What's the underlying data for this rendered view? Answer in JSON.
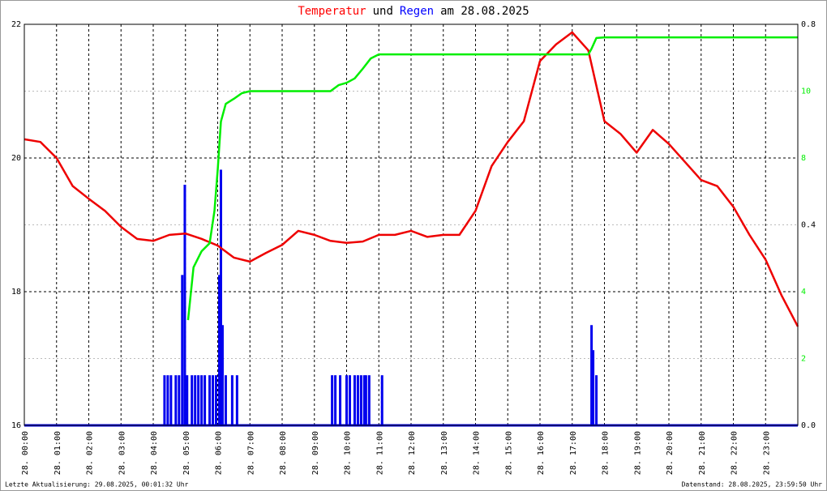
{
  "chart_data": {
    "type": "line",
    "title_parts": [
      {
        "text": "Temperatur",
        "color": "#ff0000"
      },
      {
        "text": "und",
        "color": "#000000"
      },
      {
        "text": "Regen",
        "color": "#0000ff"
      },
      {
        "text": "am 28.08.2025",
        "color": "#000000"
      }
    ],
    "xlim": [
      0,
      24
    ],
    "xticks": [
      {
        "value": 0,
        "label": "28. 00:00"
      },
      {
        "value": 1,
        "label": "28. 01:00"
      },
      {
        "value": 2,
        "label": "28. 02:00"
      },
      {
        "value": 3,
        "label": "28. 03:00"
      },
      {
        "value": 4,
        "label": "28. 04:00"
      },
      {
        "value": 5,
        "label": "28. 05:00"
      },
      {
        "value": 6,
        "label": "28. 06:00"
      },
      {
        "value": 7,
        "label": "28. 07:00"
      },
      {
        "value": 8,
        "label": "28. 08:00"
      },
      {
        "value": 9,
        "label": "28. 09:00"
      },
      {
        "value": 10,
        "label": "28. 10:00"
      },
      {
        "value": 11,
        "label": "28. 11:00"
      },
      {
        "value": 12,
        "label": "28. 12:00"
      },
      {
        "value": 13,
        "label": "28. 13:00"
      },
      {
        "value": 14,
        "label": "28. 14:00"
      },
      {
        "value": 15,
        "label": "28. 15:00"
      },
      {
        "value": 16,
        "label": "28. 16:00"
      },
      {
        "value": 17,
        "label": "28. 17:00"
      },
      {
        "value": 18,
        "label": "28. 18:00"
      },
      {
        "value": 19,
        "label": "28. 19:00"
      },
      {
        "value": 20,
        "label": "28. 20:00"
      },
      {
        "value": 21,
        "label": "28. 21:00"
      },
      {
        "value": 22,
        "label": "28. 22:00"
      },
      {
        "value": 23,
        "label": "28. 23:00"
      }
    ],
    "ylim": [
      16,
      22
    ],
    "yticks": [
      16,
      18,
      20,
      22
    ],
    "y_minor_ticks": [
      17,
      19,
      21
    ],
    "y2lim": [
      0,
      0.8
    ],
    "y2ticks": [
      {
        "value": 0,
        "label": "0.0"
      },
      0.4,
      0.8
    ],
    "y3lim": [
      0,
      12
    ],
    "y3ticks": [
      2,
      4,
      8,
      10
    ],
    "y3color": "#00ee00",
    "grid": true,
    "series": [
      {
        "type": "line",
        "color": "#ee0000",
        "axis": "y",
        "x": [
          0,
          0.5,
          1,
          1.5,
          2,
          2.5,
          3,
          3.5,
          4,
          4.5,
          5,
          5.5,
          6,
          6.5,
          7,
          7.5,
          8,
          8.5,
          9,
          9.5,
          10,
          10.5,
          11,
          11.5,
          12,
          12.5,
          13,
          13.5,
          14,
          14.5,
          15,
          15.5,
          16,
          16.5,
          17,
          17.5,
          18,
          18.5,
          19,
          19.5,
          20,
          20.5,
          21,
          21.5,
          22,
          22.5,
          23,
          23.5,
          24
        ],
        "values": [
          20.28,
          20.24,
          20.0,
          19.58,
          19.39,
          19.21,
          18.97,
          18.79,
          18.76,
          18.85,
          18.87,
          18.79,
          18.69,
          18.51,
          18.45,
          18.58,
          18.7,
          18.91,
          18.85,
          18.76,
          18.73,
          18.75,
          18.85,
          18.85,
          18.91,
          18.82,
          18.85,
          18.85,
          19.21,
          19.88,
          20.24,
          20.55,
          21.45,
          21.7,
          21.88,
          21.61,
          20.55,
          20.36,
          20.08,
          20.42,
          20.21,
          19.94,
          19.67,
          19.58,
          19.27,
          18.85,
          18.48,
          17.94,
          17.48
        ]
      },
      {
        "type": "line",
        "color": "#00ee00",
        "axis": "y3",
        "x": [
          5.08,
          5.25,
          5.5,
          5.75,
          5.9,
          6.0,
          6.1,
          6.25,
          6.5,
          6.75,
          7,
          9.5,
          9.75,
          10,
          10.25,
          10.5,
          10.75,
          11,
          17.5,
          17.6,
          17.75,
          18,
          24
        ],
        "values": [
          3.15,
          4.73,
          5.21,
          5.45,
          6.42,
          7.64,
          9.09,
          9.62,
          9.77,
          9.94,
          10.0,
          10.0,
          10.18,
          10.25,
          10.38,
          10.67,
          10.98,
          11.1,
          11.1,
          11.27,
          11.59,
          11.61,
          11.61
        ]
      },
      {
        "type": "bar",
        "color": "#0000ee",
        "axis": "y2",
        "x": [
          4.35,
          4.45,
          4.55,
          4.7,
          4.8,
          4.9,
          4.98,
          5.05,
          5.2,
          5.3,
          5.4,
          5.5,
          5.6,
          5.75,
          5.85,
          5.95,
          6.05,
          6.1,
          6.15,
          6.25,
          6.45,
          6.6,
          9.55,
          9.65,
          9.8,
          10.0,
          10.1,
          10.25,
          10.35,
          10.45,
          10.55,
          10.6,
          10.7,
          11.1,
          17.6,
          17.65,
          17.75
        ],
        "values": [
          0.1,
          0.1,
          0.1,
          0.1,
          0.1,
          0.3,
          0.48,
          0.1,
          0.1,
          0.1,
          0.1,
          0.1,
          0.1,
          0.1,
          0.1,
          0.1,
          0.3,
          0.51,
          0.2,
          0.1,
          0.1,
          0.1,
          0.1,
          0.1,
          0.1,
          0.1,
          0.1,
          0.1,
          0.1,
          0.1,
          0.1,
          0.1,
          0.1,
          0.1,
          0.2,
          0.15,
          0.1
        ]
      }
    ],
    "footer_left": "Letzte Aktualisierung: 29.08.2025, 00:01:32 Uhr",
    "footer_right": "Datenstand: 28.08.2025, 23:59:50 Uhr"
  }
}
